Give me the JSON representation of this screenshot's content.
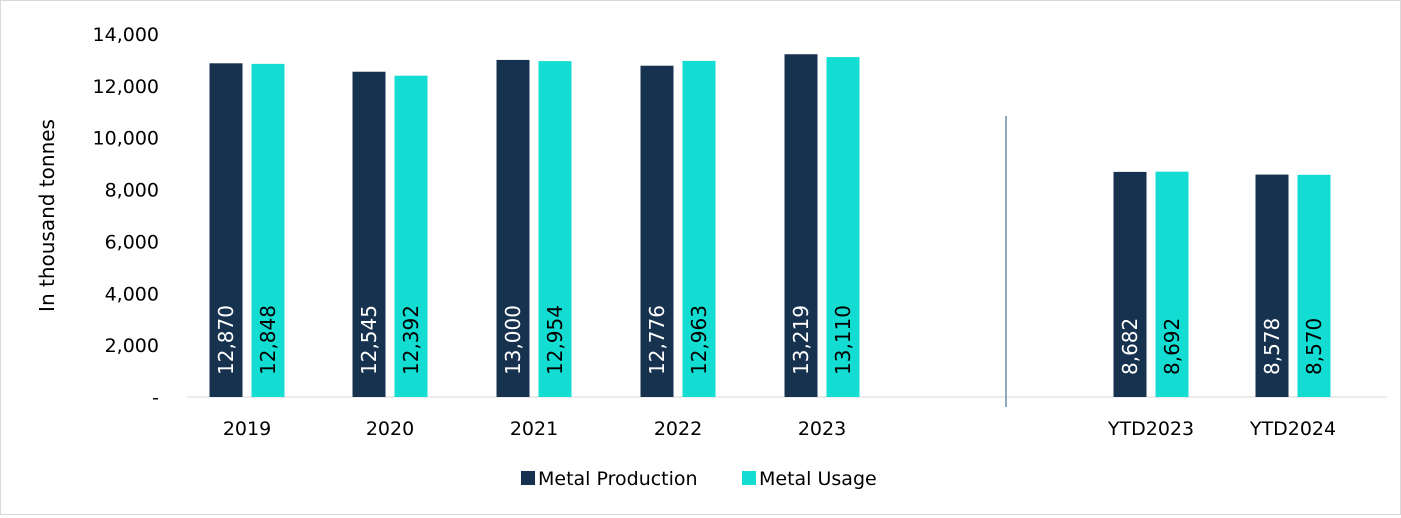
{
  "chart_data": {
    "type": "bar",
    "ylabel": "In thousand tonnes",
    "ylim": [
      0,
      14000
    ],
    "yticks": [
      0,
      2000,
      4000,
      6000,
      8000,
      10000,
      12000,
      14000
    ],
    "ytick_labels": [
      "-",
      "2,000",
      "4,000",
      "6,000",
      "8,000",
      "10,000",
      "12,000",
      "14,000"
    ],
    "categories": [
      "2019",
      "2020",
      "2021",
      "2022",
      "2023",
      "YTD2023",
      "YTD2024"
    ],
    "series": [
      {
        "name": "Metal Production",
        "color": "#17324f",
        "values": [
          12870,
          12545,
          13000,
          12776,
          13219,
          8682,
          8578
        ],
        "labels": [
          "12,870",
          "12,545",
          "13,000",
          "12,776",
          "13,219",
          "8,682",
          "8,578"
        ]
      },
      {
        "name": "Metal Usage",
        "color": "#13ddd3",
        "values": [
          12848,
          12392,
          12954,
          12963,
          13110,
          8692,
          8570
        ],
        "labels": [
          "12,848",
          "12,392",
          "12,954",
          "12,963",
          "13,110",
          "8,692",
          "8,570"
        ]
      }
    ],
    "legend_position": "bottom",
    "grid": false,
    "separator_line": true
  }
}
